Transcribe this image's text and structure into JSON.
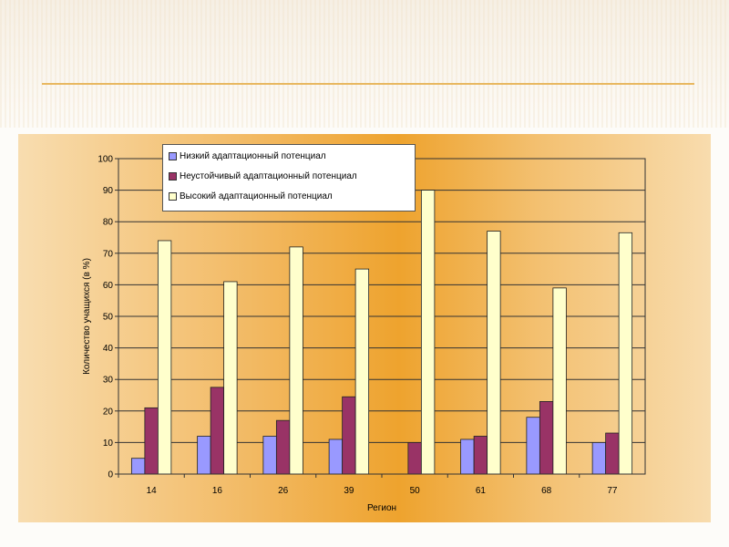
{
  "chart_data": {
    "type": "bar",
    "title": "",
    "xlabel": "Регион",
    "ylabel": "Количество учащихся (в %)",
    "ylim": [
      0,
      100
    ],
    "yticks": [
      0,
      10,
      20,
      30,
      40,
      50,
      60,
      70,
      80,
      90,
      100
    ],
    "grid": true,
    "legend_position": "top-left",
    "categories": [
      "14",
      "16",
      "26",
      "39",
      "50",
      "61",
      "68",
      "77"
    ],
    "series": [
      {
        "name": "Низкий адаптационный потенциал",
        "color": "#9999ff",
        "values": [
          5,
          12,
          12,
          11,
          0,
          11,
          18,
          10
        ]
      },
      {
        "name": "Неустойчивый адаптационный потенциал",
        "color": "#993366",
        "values": [
          21,
          27.5,
          17,
          24.5,
          10,
          12,
          23,
          13
        ]
      },
      {
        "name": "Высокий адаптационный потенциал",
        "color": "#ffffcc",
        "values": [
          74,
          61,
          72,
          65,
          90,
          77,
          59,
          76.5
        ]
      }
    ]
  }
}
